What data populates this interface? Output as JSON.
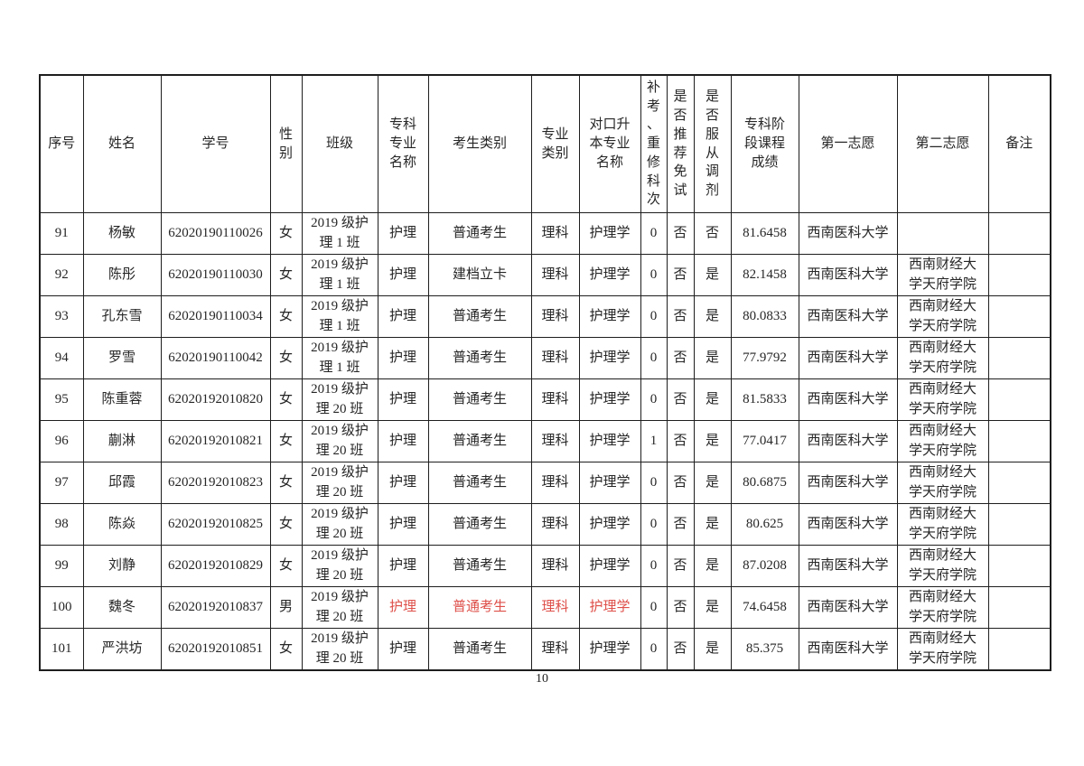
{
  "page": {
    "number": "10"
  },
  "colors": {
    "highlight_red": "#de4f49",
    "text": "#262626",
    "border": "#1e1e1e"
  },
  "table": {
    "columns": [
      {
        "key": "seq",
        "label": "序号"
      },
      {
        "key": "name",
        "label": "姓名"
      },
      {
        "key": "student_id",
        "label": "学号"
      },
      {
        "key": "gender",
        "label": "性\n别"
      },
      {
        "key": "class_name",
        "label": "班级"
      },
      {
        "key": "college_major",
        "label": "专科\n专业\n名称"
      },
      {
        "key": "candidate_type",
        "label": "考生类别"
      },
      {
        "key": "major_category",
        "label": "专业\n类别"
      },
      {
        "key": "target_major",
        "label": "对口升\n本专业\n名称"
      },
      {
        "key": "makeup_count",
        "label": "补\n考\n、\n重\n修\n科\n次"
      },
      {
        "key": "exempt_recommend",
        "label": "是\n否\n推\n荐\n免\n试"
      },
      {
        "key": "obey_adjustment",
        "label": "是\n否\n服\n从\n调\n剂"
      },
      {
        "key": "stage_score",
        "label": "专科阶\n段课程\n成绩"
      },
      {
        "key": "first_choice",
        "label": "第一志愿"
      },
      {
        "key": "second_choice",
        "label": "第二志愿"
      },
      {
        "key": "remark",
        "label": "备注"
      }
    ],
    "rows": [
      {
        "seq": "91",
        "name": "杨敏",
        "student_id": "62020190110026",
        "gender": "女",
        "class_name": "2019 级护\n理 1 班",
        "college_major": "护理",
        "candidate_type": "普通考生",
        "major_category": "理科",
        "target_major": "护理学",
        "makeup_count": "0",
        "exempt_recommend": "否",
        "obey_adjustment": "否",
        "stage_score": "81.6458",
        "first_choice": "西南医科大学",
        "second_choice": "",
        "remark": ""
      },
      {
        "seq": "92",
        "name": "陈彤",
        "student_id": "62020190110030",
        "gender": "女",
        "class_name": "2019 级护\n理 1 班",
        "college_major": "护理",
        "candidate_type": "建档立卡",
        "major_category": "理科",
        "target_major": "护理学",
        "makeup_count": "0",
        "exempt_recommend": "否",
        "obey_adjustment": "是",
        "stage_score": "82.1458",
        "first_choice": "西南医科大学",
        "second_choice": "西南财经大\n学天府学院",
        "remark": ""
      },
      {
        "seq": "93",
        "name": "孔东雪",
        "student_id": "62020190110034",
        "gender": "女",
        "class_name": "2019 级护\n理 1 班",
        "college_major": "护理",
        "candidate_type": "普通考生",
        "major_category": "理科",
        "target_major": "护理学",
        "makeup_count": "0",
        "exempt_recommend": "否",
        "obey_adjustment": "是",
        "stage_score": "80.0833",
        "first_choice": "西南医科大学",
        "second_choice": "西南财经大\n学天府学院",
        "remark": ""
      },
      {
        "seq": "94",
        "name": "罗雪",
        "student_id": "62020190110042",
        "gender": "女",
        "class_name": "2019 级护\n理 1 班",
        "college_major": "护理",
        "candidate_type": "普通考生",
        "major_category": "理科",
        "target_major": "护理学",
        "makeup_count": "0",
        "exempt_recommend": "否",
        "obey_adjustment": "是",
        "stage_score": "77.9792",
        "first_choice": "西南医科大学",
        "second_choice": "西南财经大\n学天府学院",
        "remark": ""
      },
      {
        "seq": "95",
        "name": "陈重蓉",
        "student_id": "62020192010820",
        "gender": "女",
        "class_name": "2019 级护\n理 20 班",
        "college_major": "护理",
        "candidate_type": "普通考生",
        "major_category": "理科",
        "target_major": "护理学",
        "makeup_count": "0",
        "exempt_recommend": "否",
        "obey_adjustment": "是",
        "stage_score": "81.5833",
        "first_choice": "西南医科大学",
        "second_choice": "西南财经大\n学天府学院",
        "remark": ""
      },
      {
        "seq": "96",
        "name": "蒯淋",
        "student_id": "62020192010821",
        "gender": "女",
        "class_name": "2019 级护\n理 20 班",
        "college_major": "护理",
        "candidate_type": "普通考生",
        "major_category": "理科",
        "target_major": "护理学",
        "makeup_count": "1",
        "exempt_recommend": "否",
        "obey_adjustment": "是",
        "stage_score": "77.0417",
        "first_choice": "西南医科大学",
        "second_choice": "西南财经大\n学天府学院",
        "remark": ""
      },
      {
        "seq": "97",
        "name": "邱霞",
        "student_id": "62020192010823",
        "gender": "女",
        "class_name": "2019 级护\n理 20 班",
        "college_major": "护理",
        "candidate_type": "普通考生",
        "major_category": "理科",
        "target_major": "护理学",
        "makeup_count": "0",
        "exempt_recommend": "否",
        "obey_adjustment": "是",
        "stage_score": "80.6875",
        "first_choice": "西南医科大学",
        "second_choice": "西南财经大\n学天府学院",
        "remark": ""
      },
      {
        "seq": "98",
        "name": "陈焱",
        "student_id": "62020192010825",
        "gender": "女",
        "class_name": "2019 级护\n理 20 班",
        "college_major": "护理",
        "candidate_type": "普通考生",
        "major_category": "理科",
        "target_major": "护理学",
        "makeup_count": "0",
        "exempt_recommend": "否",
        "obey_adjustment": "是",
        "stage_score": "80.625",
        "first_choice": "西南医科大学",
        "second_choice": "西南财经大\n学天府学院",
        "remark": ""
      },
      {
        "seq": "99",
        "name": "刘静",
        "student_id": "62020192010829",
        "gender": "女",
        "class_name": "2019 级护\n理 20 班",
        "college_major": "护理",
        "candidate_type": "普通考生",
        "major_category": "理科",
        "target_major": "护理学",
        "makeup_count": "0",
        "exempt_recommend": "否",
        "obey_adjustment": "是",
        "stage_score": "87.0208",
        "first_choice": "西南医科大学",
        "second_choice": "西南财经大\n学天府学院",
        "remark": ""
      },
      {
        "seq": "100",
        "name": "魏冬",
        "student_id": "62020192010837",
        "gender": "男",
        "class_name": "2019 级护\n理 20 班",
        "college_major": "护理",
        "candidate_type": "普通考生",
        "major_category": "理科",
        "target_major": "护理学",
        "makeup_count": "0",
        "exempt_recommend": "否",
        "obey_adjustment": "是",
        "stage_score": "74.6458",
        "first_choice": "西南医科大学",
        "second_choice": "西南财经大\n学天府学院",
        "remark": "",
        "highlight_keys": [
          "college_major",
          "candidate_type",
          "major_category",
          "target_major"
        ]
      },
      {
        "seq": "101",
        "name": "严洪坊",
        "student_id": "62020192010851",
        "gender": "女",
        "class_name": "2019 级护\n理 20 班",
        "college_major": "护理",
        "candidate_type": "普通考生",
        "major_category": "理科",
        "target_major": "护理学",
        "makeup_count": "0",
        "exempt_recommend": "否",
        "obey_adjustment": "是",
        "stage_score": "85.375",
        "first_choice": "西南医科大学",
        "second_choice": "西南财经大\n学天府学院",
        "remark": ""
      }
    ]
  }
}
